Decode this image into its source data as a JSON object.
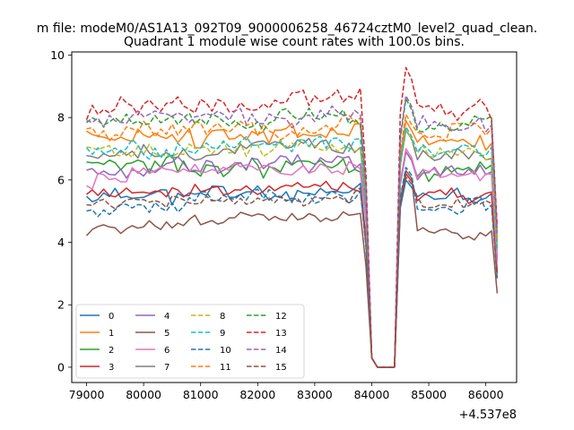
{
  "chart_data": {
    "type": "line",
    "suptitle": "m file: modeM0/AS1A13_092T09_9000006258_46724cztM0_level2_quad_clean.",
    "title": "Quadrant 1 module wise count rates with 100.0s bins.",
    "xlabel": "",
    "ylabel": "",
    "x_offset_label": "+4.537e8",
    "xlim": [
      78740,
      86540
    ],
    "ylim": [
      -0.49,
      10.1
    ],
    "xticks": [
      79000,
      80000,
      81000,
      82000,
      83000,
      84000,
      85000,
      86000
    ],
    "yticks": [
      0,
      2,
      4,
      6,
      8,
      10
    ],
    "grid": false,
    "legend": {
      "position": "lower-left",
      "columns": 4
    },
    "bin_seconds": 100,
    "t_start": 79000,
    "t_end": 86200,
    "gap": {
      "start": 84100,
      "end": 84400
    },
    "series": [
      {
        "name": "0",
        "color": "#1f77b4",
        "dash": "solid",
        "level": 5.45,
        "amp": 0.28,
        "peak": 6.0,
        "seed": 11
      },
      {
        "name": "1",
        "color": "#ff7f0e",
        "dash": "solid",
        "level": 7.25,
        "amp": 0.32,
        "peak": 7.9,
        "seed": 23
      },
      {
        "name": "2",
        "color": "#2ca02c",
        "dash": "solid",
        "level": 6.3,
        "amp": 0.3,
        "peak": 6.9,
        "seed": 37
      },
      {
        "name": "3",
        "color": "#d62728",
        "dash": "solid",
        "level": 5.55,
        "amp": 0.22,
        "peak": 6.2,
        "seed": 41
      },
      {
        "name": "4",
        "color": "#9467bd",
        "dash": "solid",
        "level": 6.35,
        "amp": 0.25,
        "peak": 6.9,
        "seed": 53
      },
      {
        "name": "5",
        "color": "#8c564b",
        "dash": "solid",
        "level": 4.3,
        "amp": 0.18,
        "peak": 6.3,
        "seed": 61
      },
      {
        "name": "6",
        "color": "#e377c2",
        "dash": "solid",
        "level": 6.15,
        "amp": 0.28,
        "peak": 7.0,
        "seed": 71
      },
      {
        "name": "7",
        "color": "#7f7f7f",
        "dash": "solid",
        "level": 6.85,
        "amp": 0.25,
        "peak": 7.6,
        "seed": 83
      },
      {
        "name": "8",
        "color": "#bcbd22",
        "dash": "dashed",
        "level": 6.9,
        "amp": 0.25,
        "peak": 7.6,
        "seed": 97
      },
      {
        "name": "9",
        "color": "#17becf",
        "dash": "dashed",
        "level": 6.95,
        "amp": 0.28,
        "peak": 7.7,
        "seed": 101
      },
      {
        "name": "10",
        "color": "#1f77b4",
        "dash": "dashed",
        "level": 5.1,
        "amp": 0.22,
        "peak": 6.4,
        "seed": 113
      },
      {
        "name": "11",
        "color": "#ff7f0e",
        "dash": "dashed",
        "level": 7.5,
        "amp": 0.28,
        "peak": 8.1,
        "seed": 127
      },
      {
        "name": "12",
        "color": "#2ca02c",
        "dash": "dashed",
        "level": 7.8,
        "amp": 0.28,
        "peak": 8.6,
        "seed": 131
      },
      {
        "name": "13",
        "color": "#d62728",
        "dash": "dashed",
        "level": 8.2,
        "amp": 0.3,
        "peak": 9.6,
        "seed": 149
      },
      {
        "name": "14",
        "color": "#9467bd",
        "dash": "dashed",
        "level": 7.8,
        "amp": 0.28,
        "peak": 8.7,
        "seed": 157
      },
      {
        "name": "15",
        "color": "#8c564b",
        "dash": "dashed",
        "level": 5.2,
        "amp": 0.22,
        "peak": 6.1,
        "seed": 163
      }
    ]
  }
}
